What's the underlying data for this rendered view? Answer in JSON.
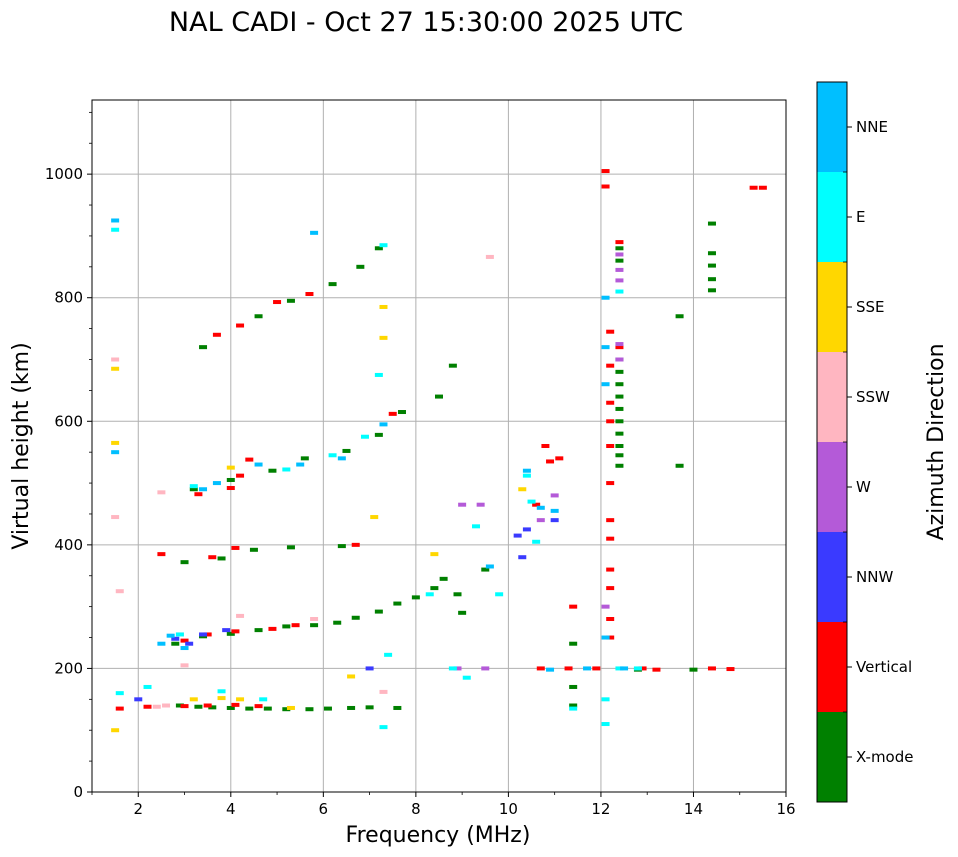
{
  "chart_data": {
    "type": "scatter",
    "title": "NAL CADI - Oct 27 15:30:00 2025 UTC",
    "xlabel": "Frequency (MHz)",
    "ylabel": "Virtual height (km)",
    "xlim": [
      1,
      16
    ],
    "ylim": [
      0,
      1120
    ],
    "xticks": [
      2,
      4,
      6,
      8,
      10,
      12,
      14,
      16
    ],
    "yticks": [
      0,
      200,
      400,
      600,
      800,
      1000
    ],
    "grid": true,
    "colorbar": {
      "label": "Azimuth Direction",
      "categories": [
        {
          "name": "X-mode",
          "color": "#008000"
        },
        {
          "name": "Vertical",
          "color": "#ff0000"
        },
        {
          "name": "NNW",
          "color": "#3a3aff"
        },
        {
          "name": "W",
          "color": "#b45ad8"
        },
        {
          "name": "SSW",
          "color": "#ffb6c1"
        },
        {
          "name": "SSE",
          "color": "#ffd700"
        },
        {
          "name": "E",
          "color": "#00ffff"
        },
        {
          "name": "NNE",
          "color": "#00bfff"
        }
      ]
    },
    "series": [
      {
        "name": "X-mode",
        "points": [
          [
            2.9,
            140
          ],
          [
            3.3,
            138
          ],
          [
            3.6,
            137
          ],
          [
            4.0,
            136
          ],
          [
            4.4,
            135
          ],
          [
            4.8,
            135
          ],
          [
            5.2,
            134
          ],
          [
            5.7,
            134
          ],
          [
            6.1,
            135
          ],
          [
            6.6,
            136
          ],
          [
            7.0,
            137
          ],
          [
            7.6,
            136
          ],
          [
            2.8,
            240
          ],
          [
            3.4,
            252
          ],
          [
            4.0,
            256
          ],
          [
            4.6,
            262
          ],
          [
            5.2,
            268
          ],
          [
            5.8,
            270
          ],
          [
            6.3,
            274
          ],
          [
            6.7,
            282
          ],
          [
            7.2,
            292
          ],
          [
            7.6,
            305
          ],
          [
            8.0,
            315
          ],
          [
            8.4,
            330
          ],
          [
            8.6,
            345
          ],
          [
            8.9,
            320
          ],
          [
            9.5,
            360
          ],
          [
            3.0,
            372
          ],
          [
            3.8,
            378
          ],
          [
            4.5,
            392
          ],
          [
            5.3,
            396
          ],
          [
            6.4,
            398
          ],
          [
            3.2,
            490
          ],
          [
            4.0,
            505
          ],
          [
            4.9,
            520
          ],
          [
            5.6,
            540
          ],
          [
            6.5,
            552
          ],
          [
            7.2,
            578
          ],
          [
            7.7,
            615
          ],
          [
            3.4,
            720
          ],
          [
            4.6,
            770
          ],
          [
            5.3,
            795
          ],
          [
            6.2,
            822
          ],
          [
            6.8,
            850
          ],
          [
            7.2,
            880
          ],
          [
            8.5,
            640
          ],
          [
            8.8,
            690
          ],
          [
            9.0,
            290
          ],
          [
            12.4,
            528
          ],
          [
            12.4,
            545
          ],
          [
            12.4,
            560
          ],
          [
            12.4,
            580
          ],
          [
            12.4,
            600
          ],
          [
            12.4,
            620
          ],
          [
            12.4,
            640
          ],
          [
            12.4,
            660
          ],
          [
            12.4,
            680
          ],
          [
            12.4,
            700
          ],
          [
            12.4,
            860
          ],
          [
            12.4,
            880
          ],
          [
            14.4,
            812
          ],
          [
            14.4,
            830
          ],
          [
            14.4,
            852
          ],
          [
            14.4,
            872
          ],
          [
            14.4,
            920
          ],
          [
            13.7,
            770
          ],
          [
            13.7,
            528
          ],
          [
            11.4,
            140
          ],
          [
            11.4,
            170
          ],
          [
            11.4,
            240
          ],
          [
            12.8,
            198
          ],
          [
            14.0,
            198
          ]
        ]
      },
      {
        "name": "Vertical",
        "points": [
          [
            1.6,
            135
          ],
          [
            2.2,
            138
          ],
          [
            3.0,
            139
          ],
          [
            3.5,
            140
          ],
          [
            4.1,
            141
          ],
          [
            4.6,
            139
          ],
          [
            2.5,
            385
          ],
          [
            3.0,
            245
          ],
          [
            3.5,
            255
          ],
          [
            4.1,
            260
          ],
          [
            4.9,
            264
          ],
          [
            5.4,
            270
          ],
          [
            3.3,
            482
          ],
          [
            4.0,
            492
          ],
          [
            4.2,
            512
          ],
          [
            4.4,
            538
          ],
          [
            3.6,
            380
          ],
          [
            4.1,
            395
          ],
          [
            3.7,
            740
          ],
          [
            4.2,
            755
          ],
          [
            5.0,
            793
          ],
          [
            5.7,
            806
          ],
          [
            6.7,
            400
          ],
          [
            7.5,
            612
          ],
          [
            10.6,
            465
          ],
          [
            10.8,
            560
          ],
          [
            10.9,
            535
          ],
          [
            11.1,
            540
          ],
          [
            11.4,
            300
          ],
          [
            12.1,
            1005
          ],
          [
            12.1,
            980
          ],
          [
            12.2,
            745
          ],
          [
            12.2,
            690
          ],
          [
            12.2,
            630
          ],
          [
            12.2,
            600
          ],
          [
            12.2,
            560
          ],
          [
            12.2,
            500
          ],
          [
            12.2,
            440
          ],
          [
            12.2,
            410
          ],
          [
            12.2,
            360
          ],
          [
            12.2,
            330
          ],
          [
            12.2,
            280
          ],
          [
            12.2,
            250
          ],
          [
            12.4,
            720
          ],
          [
            12.4,
            890
          ],
          [
            12.9,
            200
          ],
          [
            13.2,
            198
          ],
          [
            14.4,
            200
          ],
          [
            14.8,
            199
          ],
          [
            15.3,
            978
          ],
          [
            15.5,
            978
          ],
          [
            10.7,
            200
          ],
          [
            11.3,
            200
          ],
          [
            11.9,
            200
          ]
        ]
      },
      {
        "name": "NNW",
        "points": [
          [
            2.8,
            248
          ],
          [
            3.1,
            240
          ],
          [
            3.4,
            255
          ],
          [
            3.9,
            262
          ],
          [
            10.2,
            415
          ],
          [
            10.3,
            380
          ],
          [
            10.4,
            425
          ],
          [
            11.0,
            440
          ],
          [
            2.0,
            150
          ],
          [
            7.0,
            200
          ]
        ]
      },
      {
        "name": "W",
        "points": [
          [
            8.9,
            200
          ],
          [
            9.5,
            200
          ],
          [
            9.4,
            465
          ],
          [
            9.0,
            465
          ],
          [
            10.7,
            440
          ],
          [
            11.0,
            480
          ],
          [
            12.4,
            828
          ],
          [
            12.4,
            845
          ],
          [
            12.4,
            870
          ],
          [
            12.4,
            700
          ],
          [
            12.4,
            725
          ],
          [
            12.1,
            300
          ]
        ]
      },
      {
        "name": "SSW",
        "points": [
          [
            1.5,
            445
          ],
          [
            1.5,
            700
          ],
          [
            2.5,
            485
          ],
          [
            2.4,
            138
          ],
          [
            2.6,
            140
          ],
          [
            3.0,
            205
          ],
          [
            1.6,
            325
          ],
          [
            9.6,
            866
          ],
          [
            7.3,
            162
          ],
          [
            2.9,
            255
          ],
          [
            4.2,
            285
          ],
          [
            5.8,
            280
          ]
        ]
      },
      {
        "name": "SSE",
        "points": [
          [
            1.5,
            100
          ],
          [
            1.5,
            685
          ],
          [
            1.5,
            565
          ],
          [
            3.2,
            150
          ],
          [
            3.8,
            152
          ],
          [
            4.2,
            150
          ],
          [
            5.3,
            136
          ],
          [
            6.6,
            187
          ],
          [
            7.1,
            445
          ],
          [
            7.3,
            735
          ],
          [
            7.3,
            785
          ],
          [
            8.4,
            385
          ],
          [
            10.3,
            490
          ],
          [
            4.0,
            525
          ]
        ]
      },
      {
        "name": "E",
        "points": [
          [
            1.5,
            910
          ],
          [
            1.6,
            160
          ],
          [
            2.2,
            170
          ],
          [
            2.9,
            255
          ],
          [
            3.2,
            495
          ],
          [
            3.8,
            163
          ],
          [
            4.7,
            150
          ],
          [
            5.2,
            522
          ],
          [
            6.2,
            545
          ],
          [
            6.9,
            575
          ],
          [
            7.3,
            885
          ],
          [
            7.2,
            675
          ],
          [
            7.3,
            105
          ],
          [
            7.4,
            222
          ],
          [
            8.8,
            200
          ],
          [
            9.1,
            185
          ],
          [
            9.3,
            430
          ],
          [
            9.8,
            320
          ],
          [
            10.4,
            512
          ],
          [
            10.5,
            470
          ],
          [
            10.6,
            405
          ],
          [
            11.4,
            135
          ],
          [
            12.1,
            110
          ],
          [
            12.1,
            150
          ],
          [
            12.4,
            810
          ],
          [
            12.4,
            200
          ],
          [
            12.8,
            200
          ],
          [
            8.3,
            320
          ]
        ]
      },
      {
        "name": "NNE",
        "points": [
          [
            1.5,
            925
          ],
          [
            1.5,
            550
          ],
          [
            2.5,
            240
          ],
          [
            2.7,
            253
          ],
          [
            3.0,
            233
          ],
          [
            3.4,
            490
          ],
          [
            3.7,
            500
          ],
          [
            4.6,
            530
          ],
          [
            5.5,
            530
          ],
          [
            5.8,
            905
          ],
          [
            6.4,
            540
          ],
          [
            7.3,
            595
          ],
          [
            9.6,
            365
          ],
          [
            10.4,
            520
          ],
          [
            10.7,
            460
          ],
          [
            11.0,
            455
          ],
          [
            12.1,
            800
          ],
          [
            12.1,
            720
          ],
          [
            12.1,
            660
          ],
          [
            12.1,
            250
          ],
          [
            12.5,
            200
          ],
          [
            10.9,
            198
          ],
          [
            11.7,
            200
          ]
        ]
      }
    ]
  }
}
